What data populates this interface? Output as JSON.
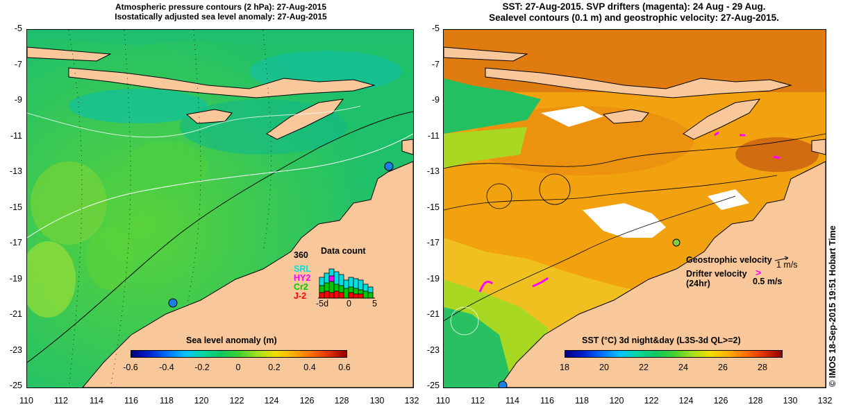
{
  "left_panel": {
    "title_line1": "Atmospheric pressure contours (2 hPa): 27-Aug-2015",
    "title_line2": "Isostatically adjusted sea level anomaly: 27-Aug-2015",
    "y_ticks": [
      "-5",
      "-7",
      "-9",
      "-11",
      "-13",
      "-15",
      "-17",
      "-19",
      "-21",
      "-23",
      "-25"
    ],
    "x_ticks": [
      "110",
      "112",
      "114",
      "116",
      "118",
      "120",
      "122",
      "124",
      "126",
      "128",
      "130",
      "132"
    ],
    "colorbar_title": "Sea level anomaly (m)",
    "colorbar_ticks": [
      "-0.6",
      "-0.4",
      "-0.2",
      "0",
      "0.2",
      "0.4",
      "0.6"
    ],
    "data_count": {
      "title": "Data count",
      "y_max": "360",
      "series": [
        "SRL",
        "HY2",
        "Cr2",
        "J-2"
      ],
      "series_colors": [
        "#00e0e0",
        "#ff00ff",
        "#00c800",
        "#ff0000"
      ],
      "x_ticks": [
        "-5d",
        "0",
        "5"
      ]
    }
  },
  "right_panel": {
    "title_line1": "SST: 27-Aug-2015. SVP drifters (magenta): 24 Aug - 29 Aug.",
    "title_line2": "Sealevel contours (0.1 m) and geostrophic velocity: 27-Aug-2015.",
    "y_ticks": [
      "-5",
      "-7",
      "-9",
      "-11",
      "-13",
      "-15",
      "-17",
      "-19",
      "-21",
      "-23",
      "-25"
    ],
    "x_ticks": [
      "110",
      "112",
      "114",
      "116",
      "118",
      "120",
      "122",
      "124",
      "126",
      "128",
      "130",
      "132"
    ],
    "legend_geo": "Geostrophic velocity",
    "legend_geo_scale": "1 m/s",
    "legend_drifter_line1": "Drifter velocity",
    "legend_drifter_line2": "(24hr)",
    "legend_drifter_scale": "0.5 m/s",
    "colorbar_title": "SST (°C) 3d night&day (L3S-3d QL>=2)",
    "colorbar_ticks": [
      "18",
      "20",
      "22",
      "24",
      "26",
      "28"
    ]
  },
  "credit": "© IMOS 18-Sep-2015 19:51 Hobart Time",
  "colors": {
    "land": "#f9c89a",
    "ocean_sla": "#21c46a",
    "ocean_sst": "#f2a20e",
    "drifter": "#ff00ff"
  }
}
